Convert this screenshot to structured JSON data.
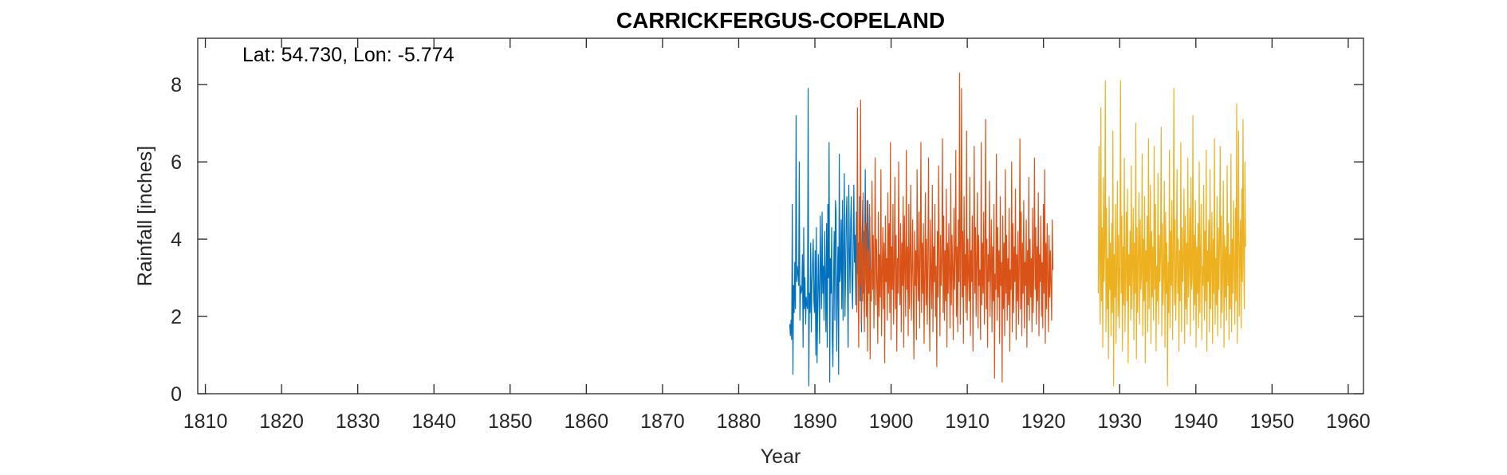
{
  "chart_data": {
    "type": "line",
    "title": "CARRICKFERGUS-COPELAND",
    "annotation": "Lat: 54.730, Lon: -5.774",
    "xlabel": "Year",
    "ylabel": "Rainfall [inches]",
    "xlim": [
      1809,
      1962
    ],
    "ylim": [
      0,
      9.2
    ],
    "xticks": [
      1810,
      1820,
      1830,
      1840,
      1850,
      1860,
      1870,
      1880,
      1890,
      1900,
      1910,
      1920,
      1930,
      1940,
      1950,
      1960
    ],
    "yticks": [
      0,
      2,
      4,
      6,
      8
    ],
    "grid": false,
    "colors": {
      "axis": "#262626",
      "series1": "#0072BD",
      "series2": "#D95319",
      "series3": "#EDB120"
    },
    "series": [
      {
        "start": 1886.7,
        "end": 1897.7,
        "step": 0.0833,
        "color": "#0072BD",
        "values": [
          1.8,
          1.5,
          1.9,
          1.4,
          4.9,
          0.5,
          2.8,
          2.1,
          3.4,
          2.2,
          7.2,
          2.9,
          3.3,
          3.1,
          2.8,
          6.0,
          1.9,
          2.8,
          2.6,
          2.7,
          3.6,
          1.2,
          4.3,
          2.2,
          3.0,
          1.8,
          2.5,
          2.3,
          2.2,
          7.9,
          0.2,
          2.6,
          2.1,
          3.9,
          1.6,
          2.9,
          3.4,
          4.0,
          2.4,
          2.1,
          3.7,
          1.0,
          4.3,
          0.8,
          2.2,
          3.6,
          2.7,
          1.3,
          4.6,
          3.3,
          2.2,
          4.7,
          2.6,
          3.3,
          1.9,
          4.2,
          3.0,
          1.6,
          4.4,
          1.2,
          4.9,
          3.0,
          6.5,
          0.3,
          3.5,
          2.6,
          4.3,
          1.5,
          0.7,
          2.8,
          4.2,
          1.9,
          5.0,
          4.7,
          1.1,
          2.8,
          3.8,
          0.5,
          6.2,
          2.9,
          3.2,
          4.5,
          2.2,
          5.0,
          1.9,
          3.7,
          5.7,
          2.0,
          3.1,
          4.6,
          5.1,
          2.8,
          1.2,
          5.4,
          3.8,
          2.6,
          4.5,
          5.1,
          3.0,
          2.2,
          3.8,
          5.4,
          3.4,
          4.1,
          2.3,
          4.7,
          3.1,
          3.6,
          3.9,
          2.9,
          5.1,
          2.4,
          4.3,
          1.6,
          3.9,
          5.0,
          2.6,
          4.2,
          3.3,
          5.8,
          2.8,
          4.4,
          3.1,
          5.0,
          3.7,
          2.9,
          4.6,
          3.2
        ]
      },
      {
        "start": 1895.5,
        "end": 1927.8,
        "step": 0.0833,
        "color": "#D95319",
        "values": [
          2.1,
          7.4,
          3.0,
          1.2,
          4.6,
          2.8,
          7.6,
          1.8,
          3.9,
          2.4,
          5.2,
          2.9,
          1.6,
          4.4,
          3.3,
          2.0,
          5.0,
          1.1,
          3.7,
          2.6,
          4.9,
          0.9,
          3.2,
          2.4,
          5.5,
          2.7,
          4.1,
          1.7,
          3.4,
          6.1,
          2.3,
          4.0,
          2.8,
          1.3,
          4.7,
          2.0,
          3.6,
          2.5,
          5.8,
          1.5,
          3.1,
          4.3,
          2.2,
          3.9,
          0.8,
          4.6,
          2.9,
          3.5,
          1.9,
          5.2,
          2.6,
          4.4,
          2.1,
          6.5,
          1.4,
          3.8,
          2.7,
          4.9,
          1.8,
          3.3,
          5.6,
          2.2,
          4.1,
          1.1,
          3.5,
          2.6,
          6.0,
          3.0,
          2.3,
          4.4,
          1.6,
          3.9,
          2.8,
          5.1,
          1.2,
          4.6,
          3.4,
          2.0,
          6.3,
          2.7,
          3.8,
          1.5,
          4.9,
          2.2,
          3.6,
          5.4,
          1.9,
          3.1,
          4.5,
          2.5,
          0.9,
          4.2,
          2.8,
          3.7,
          1.4,
          5.8,
          3.2,
          2.4,
          4.7,
          1.7,
          3.5,
          6.5,
          2.1,
          3.9,
          2.6,
          4.4,
          1.3,
          3.0,
          5.2,
          2.3,
          4.0,
          1.8,
          3.4,
          6.1,
          2.7,
          1.1,
          4.5,
          3.1,
          2.2,
          5.4,
          1.6,
          3.8,
          2.9,
          4.9,
          2.0,
          3.3,
          0.7,
          4.2,
          2.5,
          5.9,
          3.6,
          1.5,
          4.1,
          2.8,
          3.4,
          6.6,
          2.1,
          4.6,
          1.9,
          3.7,
          2.4,
          5.3,
          1.2,
          3.9,
          2.6,
          4.4,
          3.0,
          1.7,
          5.7,
          2.3,
          4.1,
          3.2,
          1.4,
          4.8,
          2.7,
          3.5,
          6.3,
          2.0,
          3.8,
          1.6,
          4.5,
          2.9,
          8.3,
          1.8,
          3.4,
          7.9,
          2.5,
          4.2,
          1.3,
          5.1,
          2.8,
          3.6,
          2.1,
          6.8,
          1.9,
          4.0,
          3.1,
          2.4,
          5.6,
          1.5,
          3.7,
          2.9,
          4.6,
          1.1,
          3.3,
          6.4,
          2.6,
          4.3,
          2.0,
          3.5,
          5.2,
          1.7,
          4.1,
          2.8,
          3.2,
          1.4,
          6.5,
          2.3,
          3.9,
          2.6,
          4.7,
          1.8,
          3.4,
          7.1,
          2.2,
          4.0,
          1.2,
          3.6,
          2.9,
          5.5,
          2.0,
          3.3,
          4.5,
          1.6,
          3.8,
          2.4,
          4.9,
          0.4,
          3.1,
          2.7,
          6.2,
          1.9,
          4.3,
          2.5,
          3.7,
          1.3,
          5.1,
          2.8,
          3.4,
          0.3,
          4.6,
          2.2,
          3.9,
          1.5,
          5.8,
          2.6,
          4.1,
          1.9,
          3.5,
          2.3,
          4.8,
          1.1,
          3.2,
          2.7,
          6.0,
          1.6,
          4.4,
          2.1,
          3.8,
          2.9,
          5.3,
          1.4,
          3.6,
          2.4,
          4.2,
          1.8,
          3.3,
          6.6,
          2.2,
          4.7,
          1.5,
          3.9,
          2.6,
          5.0,
          1.7,
          3.4,
          2.8,
          4.5,
          1.2,
          3.7,
          2.3,
          5.6,
          1.9,
          4.0,
          2.5,
          3.5,
          1.6,
          4.8,
          2.1,
          3.3,
          6.1,
          2.7,
          4.3,
          1.8,
          3.8,
          2.4,
          5.2,
          1.5,
          3.6,
          2.9,
          4.6,
          2.0,
          3.4,
          1.7,
          4.9,
          2.6,
          5.8,
          1.3,
          3.9,
          2.2,
          4.4,
          3.0,
          1.6,
          4.1,
          2.5,
          3.7,
          2.8,
          1.9,
          4.5,
          3.2
        ]
      },
      {
        "start": 1927.2,
        "end": 1960.4,
        "step": 0.0833,
        "color": "#EDB120",
        "values": [
          2.6,
          6.4,
          3.1,
          1.8,
          7.4,
          2.4,
          4.3,
          1.2,
          5.6,
          2.9,
          3.7,
          8.1,
          1.6,
          4.8,
          2.2,
          3.5,
          0.9,
          5.1,
          2.7,
          3.9,
          1.5,
          4.4,
          2.1,
          6.8,
          0.2,
          3.6,
          2.5,
          4.9,
          1.3,
          3.2,
          5.5,
          2.0,
          4.1,
          1.7,
          3.4,
          8.1,
          2.6,
          4.6,
          1.1,
          3.8,
          2.3,
          6.1,
          1.6,
          3.1,
          4.7,
          2.4,
          5.3,
          0.8,
          3.6,
          2.8,
          4.2,
          1.9,
          5.9,
          2.2,
          3.4,
          4.8,
          1.4,
          3.9,
          2.6,
          7.0,
          0.9,
          4.3,
          2.1,
          3.6,
          5.2,
          1.8,
          4.5,
          2.7,
          3.1,
          6.2,
          1.5,
          4.0,
          2.4,
          5.1,
          0.8,
          3.7,
          2.9,
          4.6,
          1.6,
          6.6,
          2.2,
          3.5,
          5.4,
          1.3,
          4.2,
          2.5,
          3.8,
          1.9,
          6.4,
          2.7,
          4.9,
          1.1,
          3.3,
          2.4,
          5.7,
          1.8,
          4.1,
          2.9,
          3.6,
          6.9,
          1.5,
          4.4,
          2.3,
          3.1,
          5.5,
          1.2,
          4.7,
          2.6,
          3.9,
          0.2,
          3.4,
          2.1,
          6.3,
          1.7,
          4.2,
          2.8,
          5.0,
          1.4,
          3.6,
          7.9,
          2.3,
          4.5,
          1.9,
          3.2,
          5.8,
          2.6,
          4.0,
          1.1,
          3.7,
          2.4,
          6.5,
          1.6,
          4.3,
          2.9,
          3.5,
          5.3,
          1.3,
          4.6,
          2.2,
          3.9,
          1.8,
          6.1,
          2.5,
          3.4,
          4.8,
          1.5,
          5.6,
          2.7,
          3.0,
          7.2,
          1.9,
          4.1,
          2.3,
          5.0,
          1.2,
          3.8,
          2.6,
          4.4,
          1.7,
          6.0,
          2.1,
          3.6,
          4.9,
          1.4,
          3.3,
          2.8,
          5.4,
          1.9,
          4.2,
          2.4,
          6.3,
          1.1,
          3.7,
          2.9,
          4.5,
          1.6,
          5.8,
          2.2,
          3.4,
          4.7,
          1.3,
          4.0,
          2.6,
          6.6,
          1.8,
          3.5,
          2.3,
          5.1,
          1.5,
          4.3,
          2.7,
          3.9,
          6.4,
          1.7,
          4.6,
          2.1,
          3.2,
          5.5,
          1.2,
          4.1,
          2.5,
          3.8,
          1.9,
          5.9,
          2.8,
          4.4,
          1.4,
          3.6,
          2.2,
          6.2,
          1.6,
          4.0,
          2.6,
          5.0,
          3.3,
          1.8,
          4.8,
          2.4,
          7.5,
          1.3,
          3.9,
          6.8,
          2.0,
          3.6,
          4.5,
          1.7,
          5.3,
          2.9,
          7.1,
          3.4,
          2.2,
          6.0,
          3.8
        ]
      }
    ]
  }
}
